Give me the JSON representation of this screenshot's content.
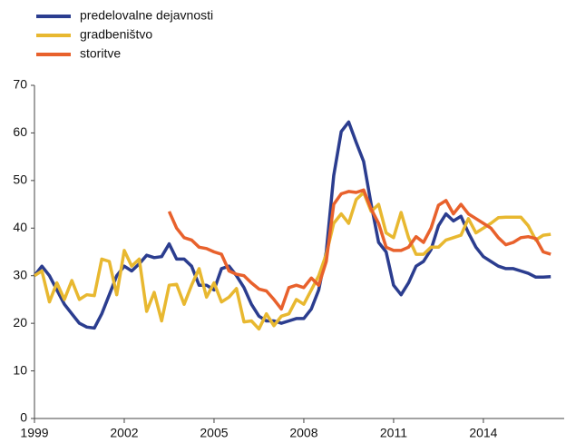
{
  "chart_data": {
    "type": "line",
    "x": [
      1999,
      1999.25,
      1999.5,
      1999.75,
      2000,
      2000.25,
      2000.5,
      2000.75,
      2001,
      2001.25,
      2001.5,
      2001.75,
      2002,
      2002.25,
      2002.5,
      2002.75,
      2003,
      2003.25,
      2003.5,
      2003.75,
      2004,
      2004.25,
      2004.5,
      2004.75,
      2005,
      2005.25,
      2005.5,
      2005.75,
      2006,
      2006.25,
      2006.5,
      2006.75,
      2007,
      2007.25,
      2007.5,
      2007.75,
      2008,
      2008.25,
      2008.5,
      2008.75,
      2009,
      2009.25,
      2009.5,
      2009.75,
      2010,
      2010.25,
      2010.5,
      2010.75,
      2011,
      2011.25,
      2011.5,
      2011.75,
      2012,
      2012.25,
      2012.5,
      2012.75,
      2013,
      2013.25,
      2013.5,
      2013.75,
      2014,
      2014.25,
      2014.5,
      2014.75,
      2015,
      2015.25,
      2015.5,
      2015.75,
      2016,
      2016.25
    ],
    "series": [
      {
        "name": "predelovalne dejavnosti",
        "color": "#2b3d8f",
        "values": [
          30,
          32,
          30,
          27,
          24,
          22,
          20,
          19.2,
          19,
          22,
          26,
          30,
          32,
          31,
          32.5,
          34.3,
          33.8,
          34,
          36.7,
          33.5,
          33.5,
          32,
          28,
          28,
          27,
          31.5,
          32,
          30,
          27.5,
          24,
          21.5,
          20.5,
          20.5,
          20,
          20.5,
          21,
          21,
          23,
          27,
          35,
          51,
          60.3,
          62.3,
          58,
          54,
          45,
          37,
          35,
          28,
          26,
          28.5,
          32,
          33,
          35.5,
          40.5,
          43,
          41.5,
          42.5,
          39,
          36,
          34,
          33,
          32,
          31.5,
          31.5,
          31,
          30.5,
          29.7,
          29.7,
          29.8
        ]
      },
      {
        "name": "gradbeništvo",
        "color": "#e8b830",
        "values": [
          30,
          31,
          24.5,
          28.5,
          25,
          29,
          25,
          26,
          25.8,
          33.5,
          33,
          26,
          35.3,
          32,
          33.5,
          22.5,
          26.5,
          20.5,
          28,
          28.2,
          24,
          28,
          31.5,
          25.5,
          28.5,
          24.5,
          25.5,
          27.3,
          20.3,
          20.5,
          18.8,
          22,
          19.5,
          21.5,
          22,
          25,
          24,
          27,
          30,
          34.5,
          41,
          43,
          41,
          46,
          47.5,
          43.5,
          45,
          39,
          38,
          43.3,
          38,
          34.5,
          34.5,
          36,
          36,
          37.5,
          38,
          38.5,
          42,
          39,
          40,
          41,
          42.2,
          42.3,
          42.3,
          42.3,
          40.5,
          37.5,
          38.5,
          38.7
        ]
      },
      {
        "name": "storitve",
        "color": "#e8612c",
        "values": [
          null,
          null,
          null,
          null,
          null,
          null,
          null,
          null,
          null,
          null,
          null,
          null,
          null,
          null,
          null,
          null,
          null,
          null,
          43.5,
          40,
          38,
          37.5,
          36,
          35.7,
          35,
          34.5,
          31,
          30.3,
          30,
          28.5,
          27.2,
          26.8,
          25,
          23,
          27.5,
          28,
          27.5,
          29.5,
          28,
          33,
          45,
          47.2,
          47.7,
          47.5,
          48,
          44,
          41,
          36,
          35.3,
          35.3,
          36,
          38.2,
          37,
          40,
          44.8,
          45.8,
          43,
          45,
          43,
          42,
          41,
          40,
          38,
          36.5,
          37,
          38,
          38.2,
          37.8,
          35,
          34.5
        ]
      }
    ],
    "xlim": [
      1999,
      2016.7
    ],
    "xticks": [
      1999,
      2002,
      2005,
      2008,
      2011,
      2014
    ],
    "ylim": [
      0,
      70
    ],
    "yticks": [
      0,
      10,
      20,
      30,
      40,
      50,
      60,
      70
    ],
    "grid": false,
    "legend": "top-left"
  }
}
